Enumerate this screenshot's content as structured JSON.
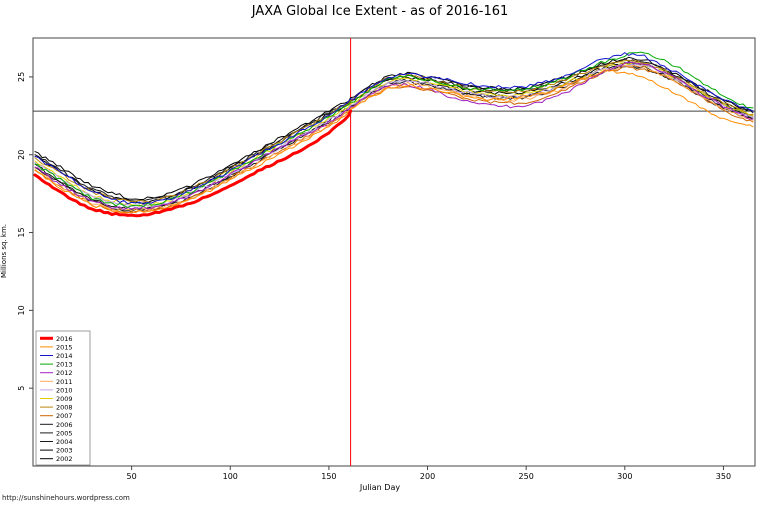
{
  "footer": "http://sunshinehours.wordpress.com",
  "chart_data": {
    "type": "line",
    "title": "JAXA Global Ice Extent - as of 2016-161",
    "xlabel": "Julian Day",
    "ylabel": "Millions sq. km.",
    "xlim": [
      0,
      366
    ],
    "ylim": [
      0,
      27.5
    ],
    "xticks": [
      50,
      100,
      150,
      200,
      250,
      300,
      350
    ],
    "yticks": [
      5,
      10,
      15,
      20,
      25
    ],
    "grid": false,
    "legend_position": "bottom-left",
    "vline": {
      "x": 161,
      "color": "#FF0000"
    },
    "hline": {
      "y": 22.8,
      "color": "#404040"
    },
    "x": [
      1,
      10,
      20,
      30,
      40,
      50,
      60,
      70,
      80,
      90,
      100,
      110,
      120,
      130,
      140,
      150,
      160,
      161,
      170,
      180,
      190,
      200,
      210,
      220,
      230,
      240,
      250,
      260,
      270,
      280,
      290,
      300,
      310,
      320,
      330,
      340,
      350,
      360,
      365
    ],
    "series": [
      {
        "name": "2016",
        "color": "#FF0000",
        "width": 3,
        "values": [
          18.7,
          17.9,
          17.1,
          16.5,
          16.2,
          16.1,
          16.2,
          16.5,
          16.9,
          17.4,
          18.0,
          18.7,
          19.3,
          19.9,
          20.6,
          21.4,
          22.5,
          22.8,
          null,
          null,
          null,
          null,
          null,
          null,
          null,
          null,
          null,
          null,
          null,
          null,
          null,
          null,
          null,
          null,
          null,
          null,
          null,
          null,
          null
        ]
      },
      {
        "name": "2015",
        "color": "#FF8C00",
        "width": 1,
        "values": [
          19.0,
          18.2,
          17.4,
          16.8,
          16.4,
          16.3,
          16.4,
          16.7,
          17.1,
          17.7,
          18.4,
          19.0,
          19.7,
          20.4,
          21.1,
          21.8,
          22.7,
          22.8,
          23.6,
          24.3,
          24.5,
          24.3,
          24.0,
          23.7,
          23.5,
          23.6,
          23.8,
          24.0,
          24.5,
          25.0,
          25.4,
          25.3,
          24.9,
          24.3,
          23.6,
          22.9,
          22.3,
          21.9,
          21.8
        ]
      },
      {
        "name": "2014",
        "color": "#1414CC",
        "width": 1,
        "values": [
          19.9,
          19.2,
          18.4,
          17.6,
          17.1,
          16.9,
          16.9,
          17.2,
          17.7,
          18.3,
          19.0,
          19.7,
          20.4,
          21.1,
          21.8,
          22.5,
          23.4,
          23.5,
          24.3,
          25.0,
          25.2,
          25.0,
          24.8,
          24.6,
          24.4,
          24.3,
          24.4,
          24.7,
          25.1,
          25.7,
          26.2,
          26.5,
          26.3,
          25.7,
          25.0,
          24.2,
          23.5,
          23.0,
          22.8
        ]
      },
      {
        "name": "2013",
        "color": "#00A800",
        "width": 1,
        "values": [
          19.4,
          18.7,
          17.9,
          17.2,
          16.8,
          16.7,
          16.8,
          17.1,
          17.6,
          18.2,
          18.9,
          19.6,
          20.3,
          21.0,
          21.7,
          22.4,
          23.2,
          23.3,
          24.1,
          24.8,
          25.0,
          24.8,
          24.5,
          24.3,
          24.2,
          24.1,
          24.2,
          24.5,
          24.9,
          25.5,
          26.0,
          26.4,
          26.6,
          26.1,
          25.4,
          24.6,
          23.8,
          23.2,
          23.0
        ]
      },
      {
        "name": "2012",
        "color": "#A020C0",
        "width": 1,
        "values": [
          19.2,
          18.4,
          17.6,
          17.0,
          16.6,
          16.5,
          16.6,
          16.9,
          17.4,
          18.0,
          18.7,
          19.4,
          20.1,
          20.8,
          21.4,
          22.1,
          22.9,
          23.0,
          23.8,
          24.4,
          24.5,
          24.2,
          23.8,
          23.5,
          23.2,
          23.1,
          23.2,
          23.5,
          24.0,
          24.7,
          25.4,
          25.9,
          25.8,
          25.3,
          24.6,
          23.8,
          23.1,
          22.5,
          22.3
        ]
      },
      {
        "name": "2011",
        "color": "#FFAA55",
        "width": 1,
        "values": [
          19.1,
          18.3,
          17.5,
          16.9,
          16.5,
          16.4,
          16.5,
          16.8,
          17.2,
          17.8,
          18.5,
          19.1,
          19.8,
          20.5,
          21.2,
          21.9,
          22.8,
          22.9,
          23.7,
          24.4,
          24.6,
          24.4,
          24.1,
          23.8,
          23.6,
          23.5,
          23.6,
          23.9,
          24.3,
          24.9,
          25.4,
          25.7,
          25.6,
          25.1,
          24.4,
          23.7,
          23.0,
          22.4,
          22.2
        ]
      },
      {
        "name": "2010",
        "color": "#C0A2E8",
        "width": 1,
        "values": [
          19.5,
          18.8,
          18.0,
          17.3,
          16.9,
          16.7,
          16.7,
          17.0,
          17.5,
          18.1,
          18.8,
          19.4,
          20.1,
          20.8,
          21.5,
          22.2,
          23.0,
          23.1,
          23.9,
          24.6,
          24.8,
          24.6,
          24.3,
          24.0,
          23.8,
          23.7,
          23.8,
          24.1,
          24.5,
          25.0,
          25.5,
          25.8,
          25.7,
          25.2,
          24.5,
          23.8,
          23.1,
          22.6,
          22.4
        ]
      },
      {
        "name": "2009",
        "color": "#E0D000",
        "width": 1,
        "values": [
          19.6,
          18.9,
          18.1,
          17.4,
          17.0,
          16.8,
          16.8,
          17.1,
          17.6,
          18.2,
          18.9,
          19.6,
          20.3,
          21.0,
          21.7,
          22.3,
          23.1,
          23.2,
          24.0,
          24.7,
          24.9,
          24.7,
          24.4,
          24.1,
          23.9,
          23.8,
          23.9,
          24.2,
          24.6,
          25.1,
          25.6,
          25.9,
          25.8,
          25.3,
          24.6,
          23.9,
          23.2,
          22.7,
          22.5
        ]
      },
      {
        "name": "2008",
        "color": "#B8860B",
        "width": 1,
        "values": [
          19.8,
          19.1,
          18.3,
          17.6,
          17.2,
          17.0,
          17.0,
          17.3,
          17.8,
          18.4,
          19.1,
          19.8,
          20.5,
          21.2,
          21.9,
          22.6,
          23.3,
          23.4,
          24.2,
          24.9,
          25.1,
          24.9,
          24.6,
          24.3,
          24.1,
          24.0,
          24.1,
          24.4,
          24.8,
          25.3,
          25.8,
          26.0,
          25.9,
          25.4,
          24.7,
          24.0,
          23.3,
          22.8,
          22.6
        ]
      },
      {
        "name": "2007",
        "color": "#CC6600",
        "width": 1,
        "values": [
          19.0,
          18.3,
          17.5,
          16.8,
          16.4,
          16.3,
          16.4,
          16.7,
          17.2,
          17.8,
          18.5,
          19.2,
          19.9,
          20.6,
          21.3,
          22.0,
          22.8,
          22.9,
          23.7,
          24.3,
          24.4,
          24.2,
          23.9,
          23.6,
          23.4,
          23.3,
          23.4,
          23.7,
          24.2,
          24.8,
          25.3,
          25.6,
          25.5,
          25.0,
          24.3,
          23.6,
          22.9,
          22.3,
          22.1
        ]
      },
      {
        "name": "2006",
        "color": "#1A1A1A",
        "width": 1,
        "values": [
          19.2,
          18.5,
          17.7,
          17.0,
          16.6,
          16.4,
          16.5,
          16.8,
          17.3,
          17.9,
          18.6,
          19.3,
          20.0,
          20.7,
          21.4,
          22.1,
          22.9,
          23.0,
          23.8,
          24.5,
          24.7,
          24.5,
          24.2,
          23.9,
          23.7,
          23.6,
          23.7,
          24.0,
          24.4,
          24.9,
          25.4,
          25.7,
          25.6,
          25.1,
          24.4,
          23.7,
          23.0,
          22.5,
          22.3
        ]
      },
      {
        "name": "2005",
        "color": "#1A1A1A",
        "width": 1,
        "values": [
          19.4,
          18.6,
          17.8,
          17.1,
          16.7,
          16.5,
          16.6,
          16.9,
          17.4,
          18.0,
          18.7,
          19.4,
          20.1,
          20.8,
          21.5,
          22.2,
          23.0,
          23.1,
          23.9,
          24.6,
          24.8,
          24.6,
          24.3,
          24.0,
          23.8,
          23.7,
          23.8,
          24.1,
          24.6,
          25.1,
          25.6,
          25.9,
          25.6,
          25.1,
          24.5,
          23.8,
          23.1,
          22.6,
          22.4
        ]
      },
      {
        "name": "2004",
        "color": "#1A1A1A",
        "width": 1,
        "values": [
          20.0,
          19.3,
          18.5,
          17.8,
          17.3,
          17.1,
          17.1,
          17.4,
          17.9,
          18.5,
          19.2,
          19.9,
          20.6,
          21.3,
          22.0,
          22.7,
          23.4,
          23.5,
          24.3,
          24.9,
          25.1,
          24.9,
          24.6,
          24.4,
          24.2,
          24.1,
          24.2,
          24.5,
          24.9,
          25.4,
          25.8,
          26.1,
          26.0,
          25.5,
          24.8,
          24.1,
          23.4,
          22.9,
          22.7
        ]
      },
      {
        "name": "2003",
        "color": "#000000",
        "width": 1,
        "values": [
          20.2,
          19.5,
          18.7,
          18.0,
          17.5,
          17.2,
          17.2,
          17.5,
          18.0,
          18.6,
          19.3,
          20.0,
          20.7,
          21.4,
          22.1,
          22.8,
          23.5,
          23.6,
          24.4,
          25.0,
          25.2,
          25.0,
          24.7,
          24.5,
          24.3,
          24.2,
          24.3,
          24.6,
          25.0,
          25.5,
          25.9,
          26.2,
          26.1,
          25.6,
          24.9,
          24.2,
          23.5,
          23.0,
          22.8
        ]
      },
      {
        "name": "2002",
        "color": "#000000",
        "width": 1,
        "values": [
          19.9,
          19.2,
          18.4,
          17.7,
          17.2,
          17.0,
          17.0,
          17.3,
          17.8,
          18.4,
          19.1,
          19.8,
          20.5,
          21.2,
          21.9,
          22.6,
          23.3,
          23.4,
          24.2,
          24.8,
          25.0,
          24.8,
          24.5,
          24.2,
          24.0,
          23.9,
          24.0,
          24.3,
          24.7,
          25.2,
          25.6,
          25.9,
          25.8,
          25.3,
          24.6,
          23.9,
          23.2,
          22.7,
          22.5
        ]
      }
    ]
  }
}
